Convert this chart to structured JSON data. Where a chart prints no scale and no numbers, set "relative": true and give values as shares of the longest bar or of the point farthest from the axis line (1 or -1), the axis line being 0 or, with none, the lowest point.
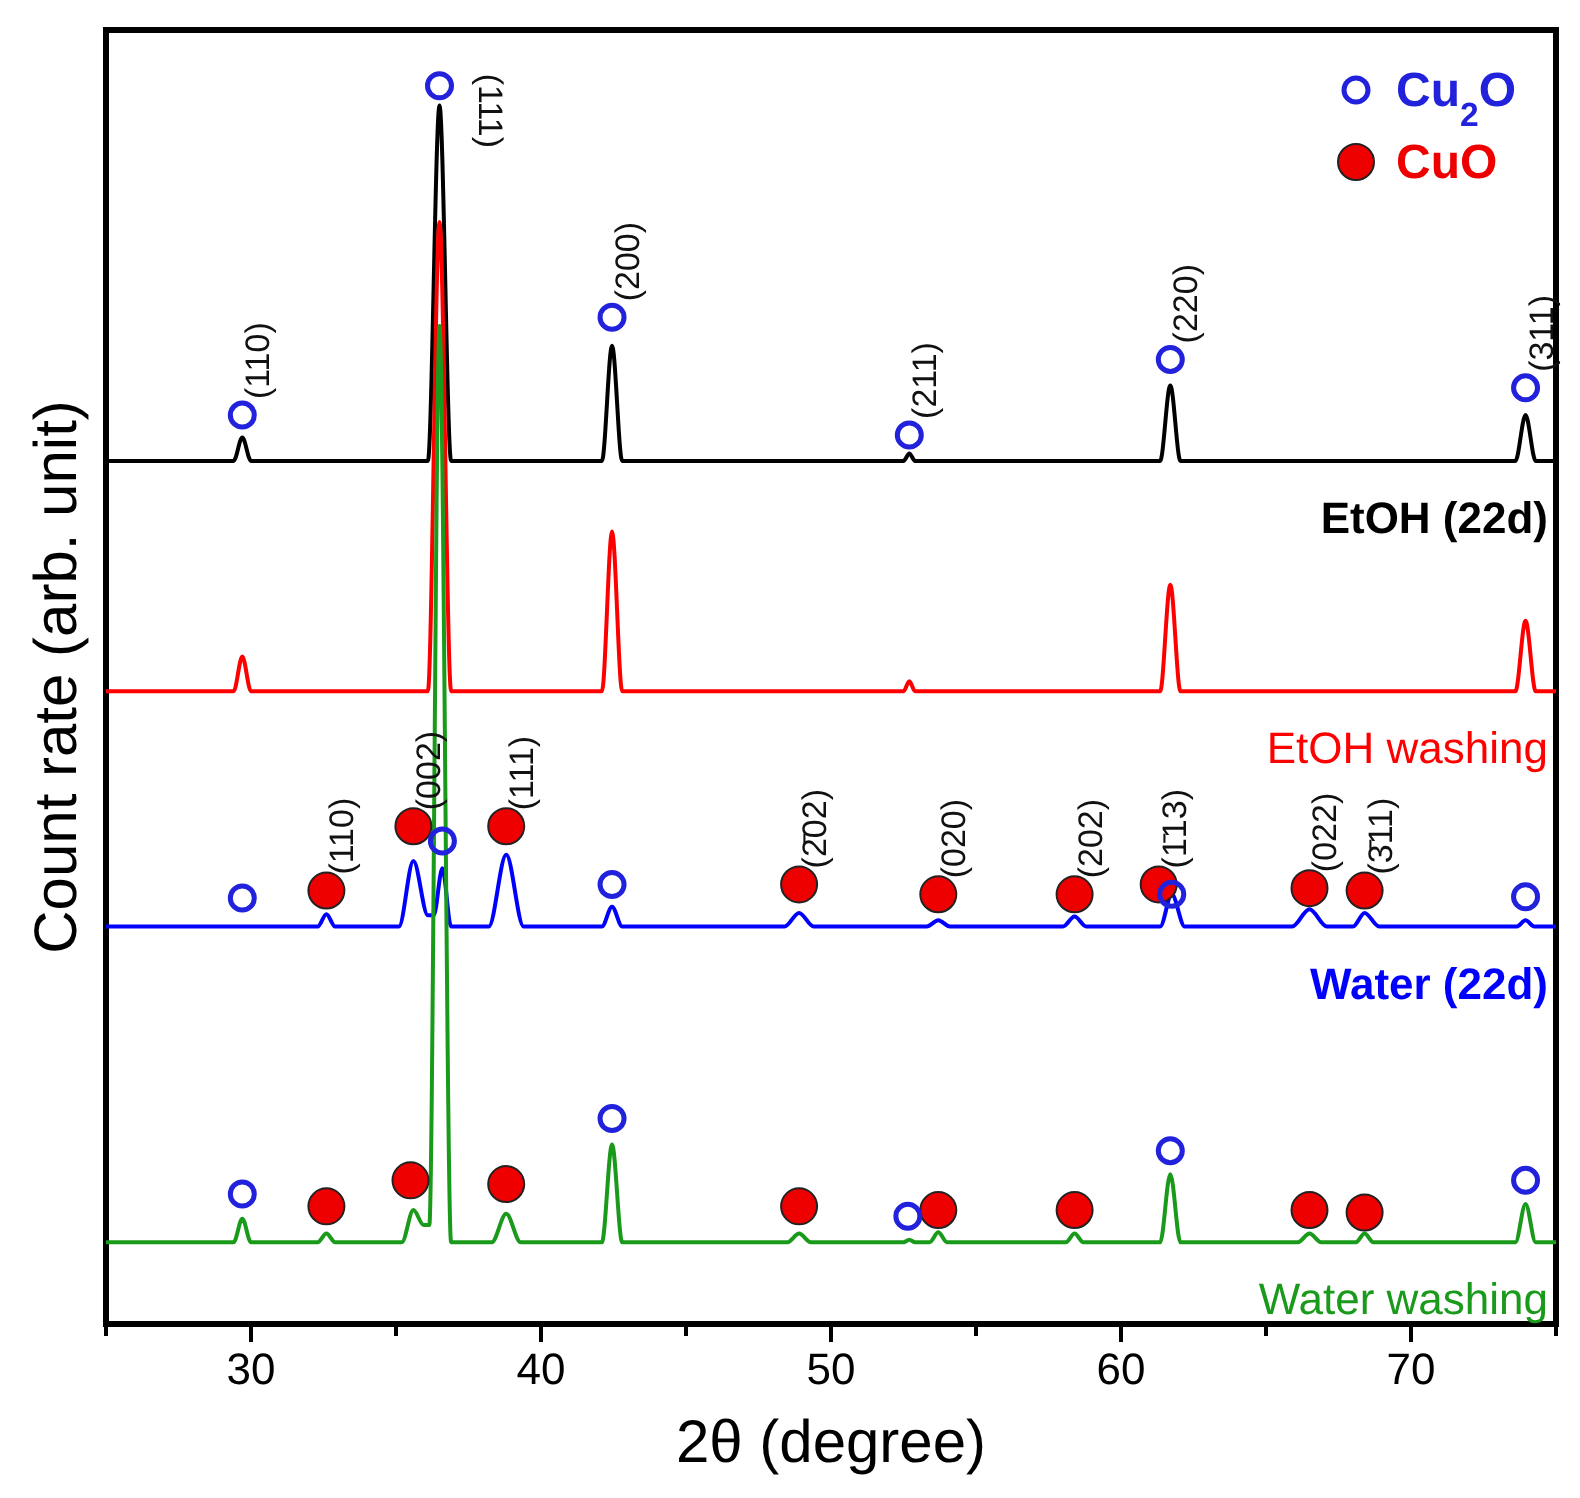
{
  "chart_data": {
    "type": "line",
    "relative": true,
    "xlabel": "2θ (degree)",
    "ylabel": "Count rate (arb. unit)",
    "xlim": [
      25,
      75
    ],
    "xticks": [
      {
        "value": 25,
        "label": null
      },
      30,
      {
        "value": 35,
        "label": null
      },
      40,
      {
        "value": 45,
        "label": null
      },
      50,
      {
        "value": 55,
        "label": null
      },
      60,
      {
        "value": 65,
        "label": null
      },
      70,
      {
        "value": 75,
        "label": null
      }
    ],
    "legend": "top right",
    "series": [
      {
        "name": "EtOH (22d)",
        "color": "#000000",
        "x": [
          25,
          29.4,
          29.7,
          30.0,
          36.1,
          36.5,
          36.9,
          42.1,
          42.45,
          42.8,
          52.5,
          52.7,
          52.9,
          61.35,
          61.7,
          62.05,
          73.6,
          73.95,
          74.3,
          75
        ],
        "values": [
          0.697,
          0.697,
          0.716,
          0.697,
          0.697,
          0.984,
          0.697,
          0.697,
          0.79,
          0.697,
          0.697,
          0.703,
          0.697,
          0.697,
          0.758,
          0.697,
          0.697,
          0.734,
          0.697,
          0.697
        ]
      },
      {
        "name": "EtOH washing",
        "color": "#ff0000",
        "x": [
          25,
          29.4,
          29.7,
          30.0,
          36.1,
          36.5,
          36.9,
          42.1,
          42.45,
          42.8,
          52.5,
          52.7,
          52.9,
          61.35,
          61.7,
          62.05,
          73.6,
          73.95,
          74.3,
          75
        ],
        "values": [
          0.511,
          0.511,
          0.539,
          0.511,
          0.511,
          0.89,
          0.511,
          0.511,
          0.64,
          0.511,
          0.511,
          0.519,
          0.511,
          0.511,
          0.597,
          0.511,
          0.511,
          0.568,
          0.511,
          0.511
        ]
      },
      {
        "name": "Water (22d)",
        "color": "#0000ff",
        "x": [
          25,
          32.3,
          32.6,
          32.9,
          35.1,
          35.6,
          36.1,
          36.3,
          36.6,
          36.9,
          38.2,
          38.8,
          39.4,
          42.1,
          42.45,
          42.8,
          48.4,
          48.9,
          49.4,
          53.3,
          53.7,
          54.1,
          58.0,
          58.4,
          58.8,
          61.35,
          61.75,
          62.2,
          65.9,
          66.5,
          67.1,
          68.0,
          68.4,
          68.9,
          73.65,
          73.95,
          74.25,
          75
        ],
        "values": [
          0.321,
          0.321,
          0.331,
          0.321,
          0.321,
          0.374,
          0.33,
          0.33,
          0.368,
          0.321,
          0.321,
          0.379,
          0.321,
          0.321,
          0.337,
          0.321,
          0.321,
          0.332,
          0.321,
          0.321,
          0.326,
          0.321,
          0.321,
          0.329,
          0.321,
          0.321,
          0.347,
          0.321,
          0.321,
          0.335,
          0.321,
          0.321,
          0.332,
          0.321,
          0.321,
          0.326,
          0.321,
          0.321
        ]
      },
      {
        "name": "Water washing",
        "color": "#1a9a1a",
        "x": [
          25,
          29.4,
          29.7,
          30.0,
          32.3,
          32.6,
          32.9,
          35.2,
          35.6,
          35.95,
          36.15,
          36.5,
          36.9,
          38.3,
          38.8,
          39.3,
          42.1,
          42.45,
          42.8,
          48.5,
          48.9,
          49.3,
          52.5,
          52.7,
          52.9,
          53.4,
          53.7,
          54.0,
          58.1,
          58.4,
          58.7,
          61.35,
          61.7,
          62.05,
          66.1,
          66.5,
          66.9,
          68.1,
          68.4,
          68.7,
          73.6,
          73.95,
          74.3,
          75
        ],
        "values": [
          0.066,
          0.066,
          0.085,
          0.066,
          0.066,
          0.073,
          0.066,
          0.066,
          0.092,
          0.08,
          0.08,
          0.806,
          0.066,
          0.066,
          0.089,
          0.066,
          0.066,
          0.145,
          0.066,
          0.066,
          0.073,
          0.066,
          0.066,
          0.068,
          0.066,
          0.066,
          0.074,
          0.066,
          0.066,
          0.073,
          0.066,
          0.066,
          0.121,
          0.066,
          0.066,
          0.073,
          0.066,
          0.066,
          0.073,
          0.066,
          0.066,
          0.097,
          0.066,
          0.066
        ]
      },
      {
        "type": "scatter",
        "name": "Cu$_{2}$O",
        "color": "#2222dd",
        "marker": "circle",
        "x": [
          29.7,
          36.5,
          42.45,
          52.7,
          61.7,
          73.95,
          29.7,
          36.6,
          42.45,
          61.75,
          73.95,
          29.7,
          42.45,
          52.65,
          61.7,
          73.95
        ],
        "values": [
          0.734,
          1.0,
          0.813,
          0.718,
          0.779,
          0.756,
          0.344,
          0.39,
          0.355,
          0.347,
          0.345,
          0.105,
          0.166,
          0.087,
          0.14,
          0.116
        ]
      },
      {
        "type": "scatter",
        "name": "CuO",
        "color": "#ee0000",
        "marker": "circle",
        "x": [
          32.6,
          35.6,
          38.8,
          48.9,
          53.7,
          58.4,
          61.3,
          66.5,
          68.4,
          32.6,
          35.5,
          38.8,
          48.9,
          53.7,
          58.4,
          66.5,
          68.4
        ],
        "values": [
          0.35,
          0.402,
          0.402,
          0.355,
          0.347,
          0.347,
          0.355,
          0.352,
          0.35,
          0.095,
          0.116,
          0.113,
          0.095,
          0.092,
          0.092,
          0.092,
          0.09
        ]
      }
    ],
    "annotations": [
      {
        "text": "(110)",
        "x": 29.7,
        "y": 0.734
      },
      {
        "text": "(111)",
        "x": 36.5,
        "y": 1.0
      },
      {
        "text": "(200)",
        "x": 42.45,
        "y": 0.813
      },
      {
        "text": "(211)",
        "x": 52.7,
        "y": 0.718
      },
      {
        "text": "(220)",
        "x": 61.7,
        "y": 0.779
      },
      {
        "text": "(311)",
        "x": 73.95,
        "y": 0.756
      },
      {
        "text": "(110)",
        "x": 32.6,
        "y": 0.35
      },
      {
        "text": "(002)",
        "x": 35.6,
        "y": 0.402
      },
      {
        "text": "(111)",
        "x": 38.8,
        "y": 0.402
      },
      {
        "text": "(2̄02)",
        "x": 48.9,
        "y": 0.355
      },
      {
        "text": "(020)",
        "x": 53.7,
        "y": 0.347
      },
      {
        "text": "(202)",
        "x": 58.4,
        "y": 0.347
      },
      {
        "text": "(1̄13)",
        "x": 61.3,
        "y": 0.355
      },
      {
        "text": "(022)",
        "x": 66.5,
        "y": 0.352
      },
      {
        "text": "(3̄11)",
        "x": 68.4,
        "y": 0.35
      }
    ]
  }
}
